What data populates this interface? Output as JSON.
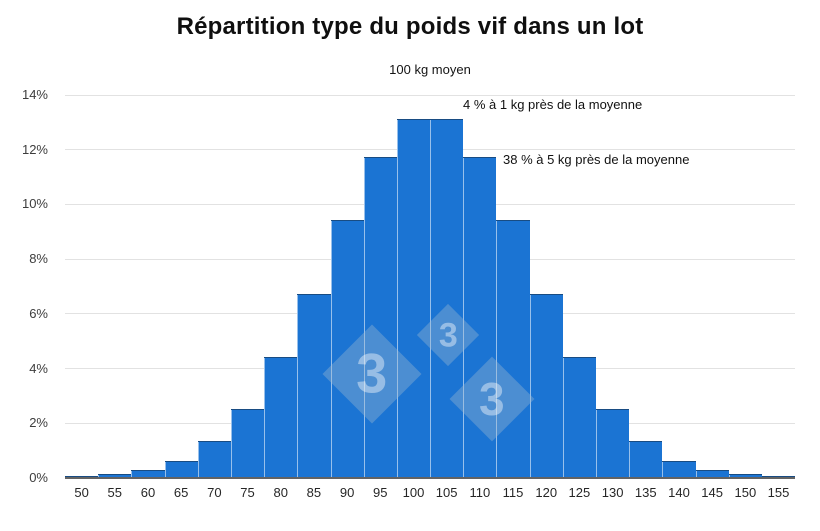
{
  "chart_data": {
    "type": "bar",
    "title": "Répartition type du poids vif dans un lot",
    "subtitle": "100 kg moyen",
    "categories": [
      50,
      55,
      60,
      65,
      70,
      75,
      80,
      85,
      90,
      95,
      100,
      105,
      110,
      115,
      120,
      125,
      130,
      135,
      140,
      145,
      150,
      155
    ],
    "values": [
      0.05,
      0.1,
      0.25,
      0.6,
      1.3,
      2.5,
      4.4,
      6.7,
      9.4,
      11.7,
      13.1,
      13.1,
      11.7,
      9.4,
      6.7,
      4.4,
      2.5,
      1.3,
      0.6,
      0.25,
      0.1,
      0.05
    ],
    "xlabel": "",
    "ylabel": "",
    "ylim": [
      0,
      14
    ],
    "yticks": [
      0,
      2,
      4,
      6,
      8,
      10,
      12,
      14
    ],
    "ytick_suffix": "%",
    "grid": true,
    "legend": "none",
    "bar_color": "#1B74D3",
    "gridline_color": "#E2E2E2",
    "axis_line_color": "#636363",
    "annotations": [
      "4 % à 1 kg près de la moyenne",
      "38 % à 5 kg près de la moyenne"
    ]
  },
  "annotations": {
    "mean_note": "4 % à 1 kg près de la moyenne",
    "spread_note": "38 % à 5 kg près de la moyenne"
  },
  "watermark": {
    "glyph": "3",
    "description": "three-diamonds-333-logo",
    "color": "#9EB7D0"
  }
}
